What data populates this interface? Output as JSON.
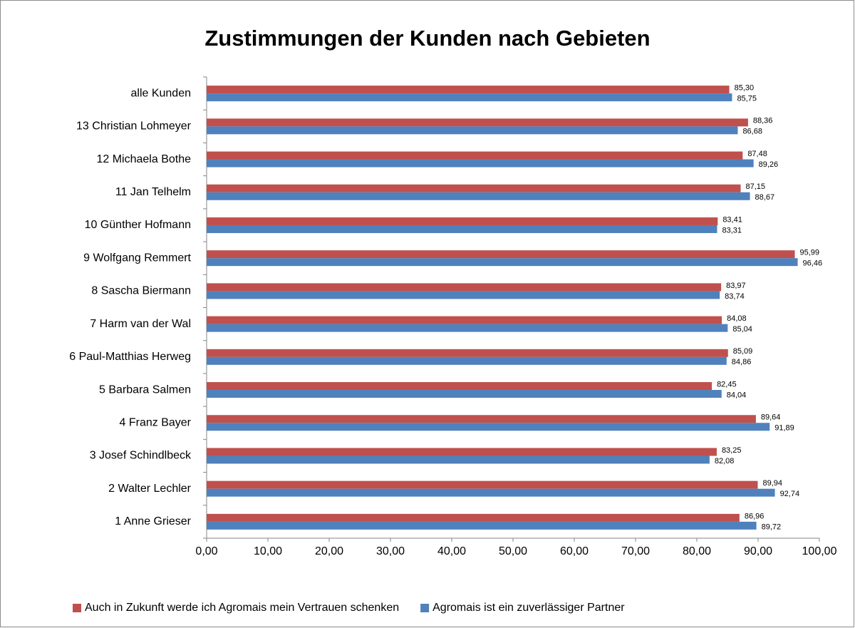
{
  "chart_data": {
    "type": "hbar",
    "title": "Zustimmungen der Kunden nach Gebieten",
    "categories": [
      "alle Kunden",
      "13 Christian Lohmeyer",
      "12 Michaela Bothe",
      "11 Jan Telhelm",
      "10 Günther Hofmann",
      "9 Wolfgang Remmert",
      "8 Sascha Biermann",
      "7 Harm van der Wal",
      "6 Paul-Matthias  Herweg",
      "5 Barbara Salmen",
      "4 Franz Bayer",
      "3 Josef Schindlbeck",
      "2 Walter Lechler",
      "1 Anne Grieser"
    ],
    "series": [
      {
        "name": "Auch in Zukunft werde ich Agromais mein Vertrauen schenken",
        "color": "#c0504d",
        "values": [
          85.3,
          88.36,
          87.48,
          87.15,
          83.41,
          95.99,
          83.97,
          84.08,
          85.09,
          82.45,
          89.64,
          83.25,
          89.94,
          86.96
        ],
        "value_labels": [
          "85,30",
          "88,36",
          "87,48",
          "87,15",
          "83,41",
          "95,99",
          "83,97",
          "84,08",
          "85,09",
          "82,45",
          "89,64",
          "83,25",
          "89,94",
          "86,96"
        ]
      },
      {
        "name": "Agromais ist ein zuverlässiger Partner",
        "color": "#4f81bd",
        "values": [
          85.75,
          86.68,
          89.26,
          88.67,
          83.31,
          96.46,
          83.74,
          85.04,
          84.86,
          84.04,
          91.89,
          82.08,
          92.74,
          89.72
        ],
        "value_labels": [
          "85,75",
          "86,68",
          "89,26",
          "88,67",
          "83,31",
          "96,46",
          "83,74",
          "85,04",
          "84,86",
          "84,04",
          "91,89",
          "82,08",
          "92,74",
          "89,72"
        ]
      }
    ],
    "xlim": [
      0,
      100
    ],
    "xticks": [
      {
        "value": 0,
        "label": "0,00"
      },
      {
        "value": 10,
        "label": "10,00"
      },
      {
        "value": 20,
        "label": "20,00"
      },
      {
        "value": 30,
        "label": "30,00"
      },
      {
        "value": 40,
        "label": "40,00"
      },
      {
        "value": 50,
        "label": "50,00"
      },
      {
        "value": 60,
        "label": "60,00"
      },
      {
        "value": 70,
        "label": "70,00"
      },
      {
        "value": 80,
        "label": "80,00"
      },
      {
        "value": 90,
        "label": "90,00"
      },
      {
        "value": 100,
        "label": "100,00"
      }
    ],
    "legend": "bottom"
  }
}
